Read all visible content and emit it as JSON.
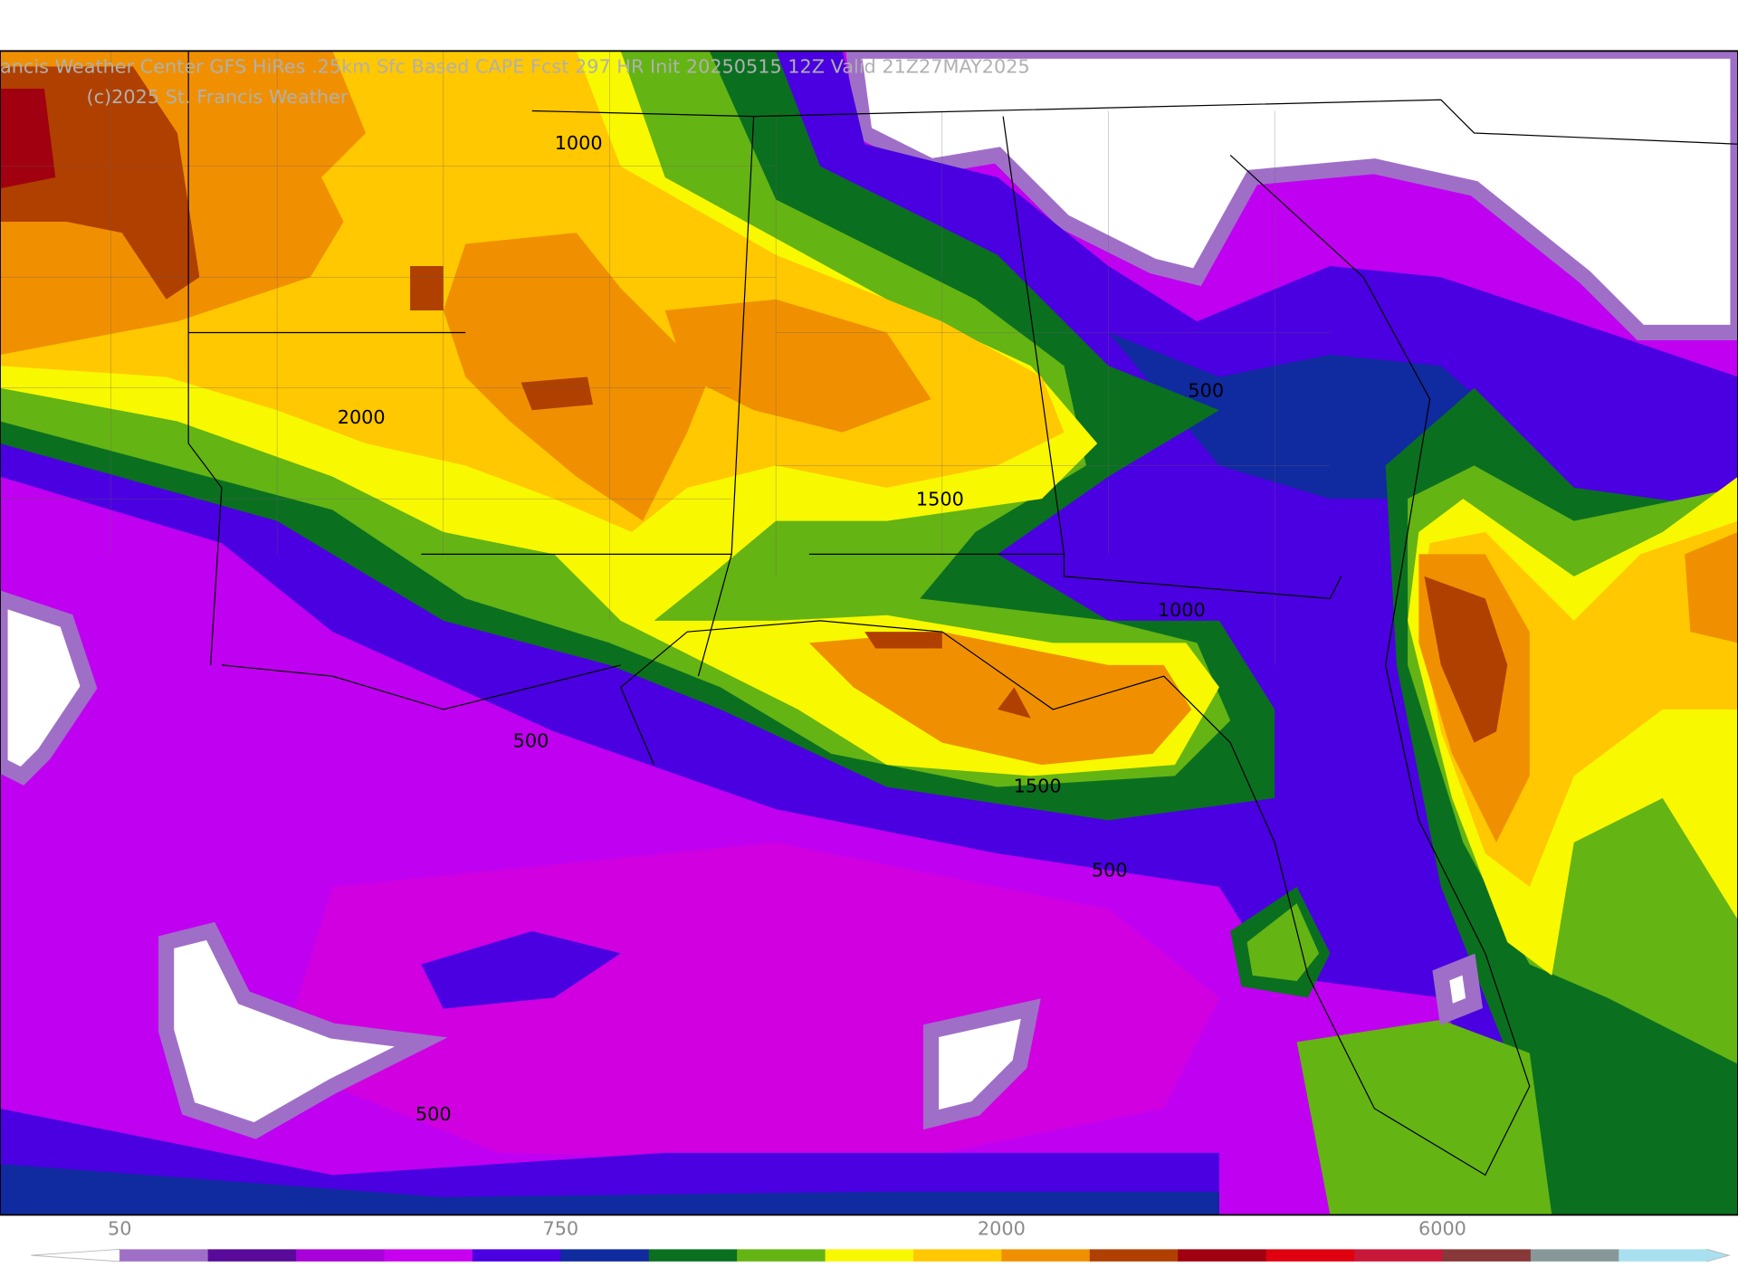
{
  "header": {
    "title": "ancis Weather Center GFS HiRes .25km Sfc Based CAPE  Fcst 297 HR Init 20250515 12Z  Valid 21Z27MAY2025",
    "credit": "(c)2025 St. Francis Weather"
  },
  "contour_labels": [
    "1000",
    "2000",
    "500",
    "1500",
    "1000",
    "1500",
    "500",
    "500",
    "500"
  ],
  "colorbar": {
    "colors": [
      "#9f6fc8",
      "#5a0a9a",
      "#a800d8",
      "#c800f0",
      "#4a00e0",
      "#102aa0",
      "#0a7020",
      "#64b414",
      "#f8f800",
      "#ffc800",
      "#f09000",
      "#b04000",
      "#a00010",
      "#e00010",
      "#c81838",
      "#883838",
      "#889898",
      "#a8e0f0"
    ],
    "ticks": [
      "50",
      "750",
      "2000",
      "6000"
    ]
  }
}
